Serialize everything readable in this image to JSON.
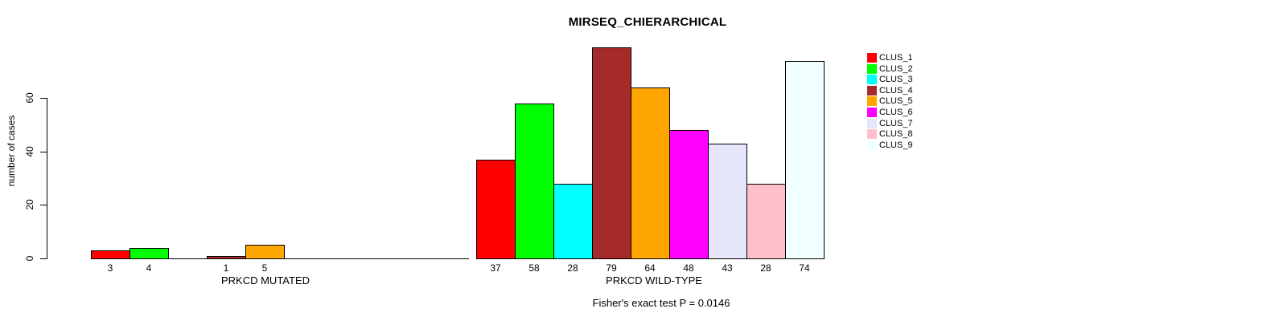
{
  "chart_data": {
    "type": "bar",
    "title": "MIRSEQ_CHIERARCHICAL",
    "ylabel": "number of cases",
    "ylim": [
      0,
      60
    ],
    "yticks": [
      0,
      20,
      40,
      60
    ],
    "grid": false,
    "legend_position": "top-right",
    "background": "#FFFFFF",
    "axis_color": "#000000",
    "bar_border_color": "#000000",
    "legend": [
      {
        "label": "CLUS_1",
        "color": "#FF0000"
      },
      {
        "label": "CLUS_2",
        "color": "#00FF00"
      },
      {
        "label": "CLUS_3",
        "color": "#00FFFF"
      },
      {
        "label": "CLUS_4",
        "color": "#A52A2A"
      },
      {
        "label": "CLUS_5",
        "color": "#FFA500"
      },
      {
        "label": "CLUS_6",
        "color": "#FF00FF"
      },
      {
        "label": "CLUS_7",
        "color": "#E6E6FA"
      },
      {
        "label": "CLUS_8",
        "color": "#FFC0CB"
      },
      {
        "label": "CLUS_9",
        "color": "#F0FFFF"
      }
    ],
    "groups": [
      {
        "label": "PRKCD MUTATED",
        "values": [
          3,
          4,
          0,
          1,
          5,
          0,
          0,
          0,
          0
        ]
      },
      {
        "label": "PRKCD WILD-TYPE",
        "values": [
          37,
          58,
          28,
          79,
          64,
          48,
          43,
          28,
          74
        ]
      }
    ],
    "annotation": "Fisher's exact test P = 0.0146"
  }
}
